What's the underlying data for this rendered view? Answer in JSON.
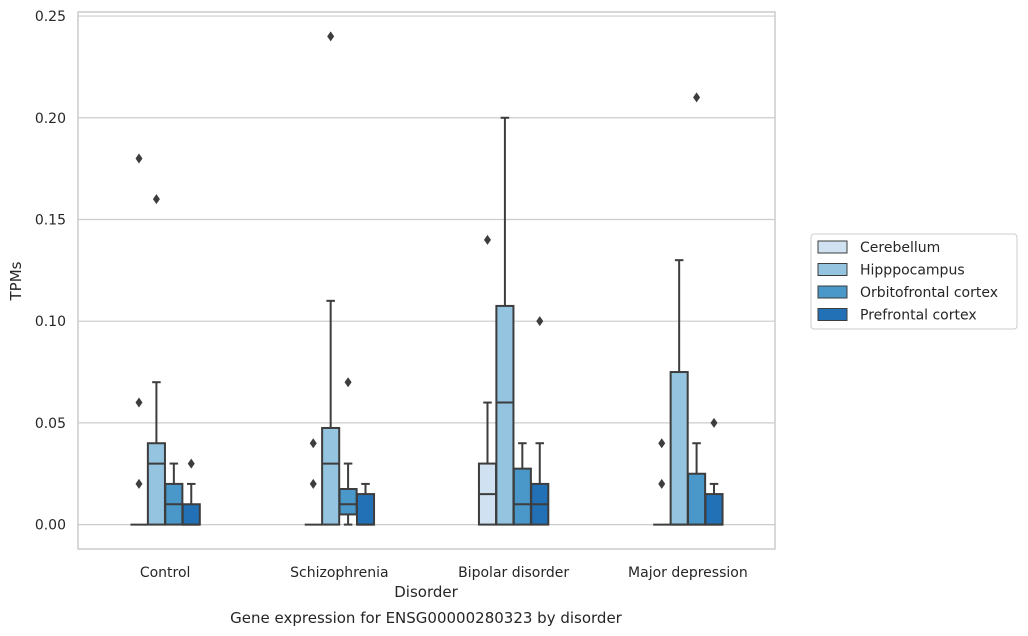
{
  "chart_data": {
    "type": "box",
    "xlabel": "Disorder",
    "ylabel": "TPMs",
    "caption": "Gene expression for ENSG00000280323 by disorder",
    "ylim": [
      -0.012,
      0.252
    ],
    "yticks": [
      0.0,
      0.05,
      0.1,
      0.15,
      0.2,
      0.25
    ],
    "ytick_labels": [
      "0.00",
      "0.05",
      "0.10",
      "0.15",
      "0.20",
      "0.25"
    ],
    "grid": "horizontal",
    "legend_position": "right",
    "categories": [
      "Control",
      "Schizophrenia",
      "Bipolar disorder",
      "Major depression"
    ],
    "series": [
      {
        "name": "Cerebellum",
        "color": "#d0e1f2",
        "boxes": [
          {
            "q1": 0,
            "median": 0,
            "q3": 0,
            "whislo": 0,
            "whishi": 0,
            "fliers": [
              0.02,
              0.06,
              0.18
            ]
          },
          {
            "q1": 0,
            "median": 0,
            "q3": 0,
            "whislo": 0,
            "whishi": 0,
            "fliers": [
              0.02,
              0.04
            ]
          },
          {
            "q1": 0,
            "median": 0.015,
            "q3": 0.03,
            "whislo": 0,
            "whishi": 0.06,
            "fliers": [
              0.14
            ]
          },
          {
            "q1": 0,
            "median": 0,
            "q3": 0,
            "whislo": 0,
            "whishi": 0,
            "fliers": [
              0.02,
              0.04
            ]
          }
        ]
      },
      {
        "name": "Hipppocampus",
        "color": "#94c4df",
        "boxes": [
          {
            "q1": 0,
            "median": 0.03,
            "q3": 0.04,
            "whislo": 0,
            "whishi": 0.07,
            "fliers": [
              0.16
            ]
          },
          {
            "q1": 0,
            "median": 0.03,
            "q3": 0.0475,
            "whislo": 0,
            "whishi": 0.11,
            "fliers": [
              0.24
            ]
          },
          {
            "q1": 0,
            "median": 0.06,
            "q3": 0.1075,
            "whislo": 0,
            "whishi": 0.2,
            "fliers": []
          },
          {
            "q1": 0,
            "median": 0,
            "q3": 0.075,
            "whislo": 0,
            "whishi": 0.13,
            "fliers": []
          }
        ]
      },
      {
        "name": "Orbitofrontal cortex",
        "color": "#4a98c9",
        "boxes": [
          {
            "q1": 0,
            "median": 0.01,
            "q3": 0.02,
            "whislo": 0,
            "whishi": 0.03,
            "fliers": []
          },
          {
            "q1": 0.005,
            "median": 0.01,
            "q3": 0.0175,
            "whislo": 0,
            "whishi": 0.03,
            "fliers": [
              0.07
            ]
          },
          {
            "q1": 0,
            "median": 0.01,
            "q3": 0.0275,
            "whislo": 0,
            "whishi": 0.04,
            "fliers": []
          },
          {
            "q1": 0,
            "median": 0,
            "q3": 0.025,
            "whislo": 0,
            "whishi": 0.04,
            "fliers": [
              0.21
            ]
          }
        ]
      },
      {
        "name": "Prefrontal cortex",
        "color": "#2270b5",
        "boxes": [
          {
            "q1": 0,
            "median": 0,
            "q3": 0.01,
            "whislo": 0,
            "whishi": 0.02,
            "fliers": [
              0.03
            ]
          },
          {
            "q1": 0,
            "median": 0,
            "q3": 0.015,
            "whislo": 0,
            "whishi": 0.02,
            "fliers": []
          },
          {
            "q1": 0,
            "median": 0.01,
            "q3": 0.02,
            "whislo": 0,
            "whishi": 0.04,
            "fliers": [
              0.1
            ]
          },
          {
            "q1": 0,
            "median": 0,
            "q3": 0.015,
            "whislo": 0,
            "whishi": 0.02,
            "fliers": [
              0.05
            ]
          }
        ]
      }
    ]
  },
  "colors": {
    "grid": "#cccccc",
    "edge": "#3d3d3d",
    "frame": "#cccccc"
  }
}
